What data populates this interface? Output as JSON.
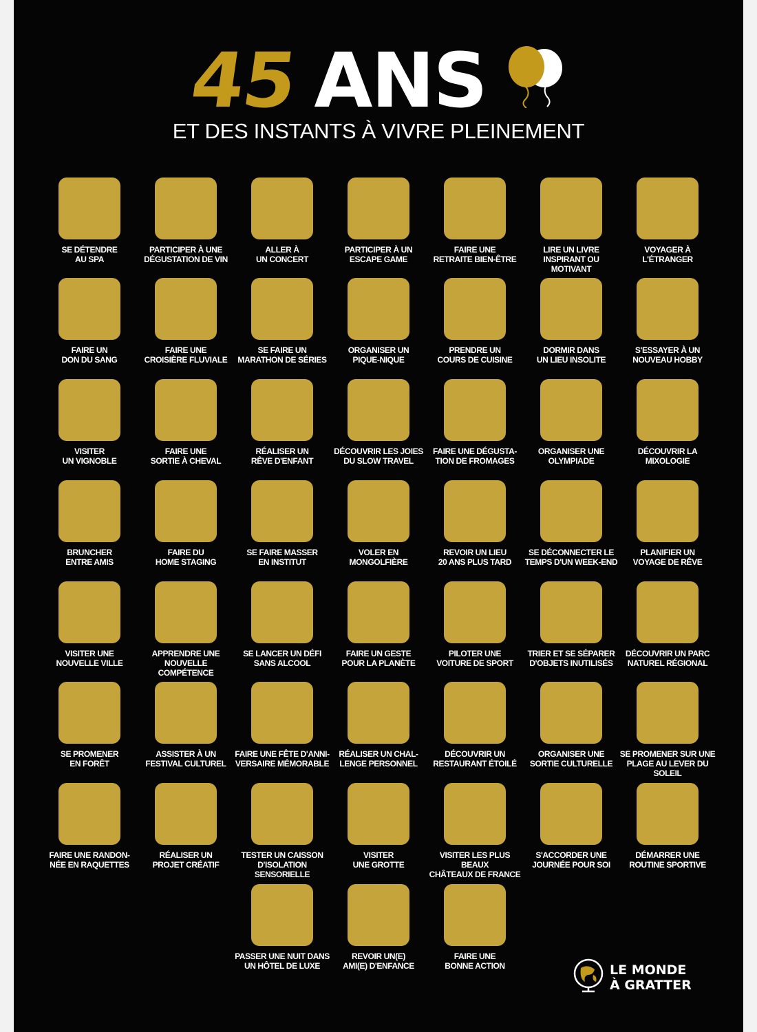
{
  "header": {
    "title_number": "45",
    "title_word": "ANS",
    "subtitle": "ET DES INSTANTS À VIVRE PLEINEMENT"
  },
  "colors": {
    "background": "#050505",
    "gold": "#c6a43c",
    "title_gold": "#c49a1d",
    "text": "#ffffff"
  },
  "items": [
    "SE DÉTENDRE\nAU SPA",
    "PARTICIPER À UNE\nDÉGUSTATION DE VIN",
    "ALLER À\nUN CONCERT",
    "PARTICIPER À UN\nESCAPE GAME",
    "FAIRE UNE\nRETRAITE BIEN-ÊTRE",
    "LIRE UN LIVRE\nINSPIRANT OU MOTIVANT",
    "VOYAGER À\nL'ÉTRANGER",
    "FAIRE UN\nDON DU SANG",
    "FAIRE UNE\nCROISIÈRE FLUVIALE",
    "SE FAIRE UN\nMARATHON DE SÉRIES",
    "ORGANISER UN\nPIQUE-NIQUE",
    "PRENDRE UN\nCOURS DE CUISINE",
    "DORMIR DANS\nUN LIEU INSOLITE",
    "S'ESSAYER À UN\nNOUVEAU HOBBY",
    "VISITER\nUN VIGNOBLE",
    "FAIRE UNE\nSORTIE À CHEVAL",
    "RÉALISER UN\nRÊVE D'ENFANT",
    "DÉCOUVRIR LES JOIES\nDU SLOW TRAVEL",
    "FAIRE UNE DÉGUSTA-\nTION DE FROMAGES",
    "ORGANISER UNE\nOLYMPIADE",
    "DÉCOUVRIR LA\nMIXOLOGIE",
    "BRUNCHER\nENTRE AMIS",
    "FAIRE DU\nHOME STAGING",
    "SE FAIRE MASSER\nEN INSTITUT",
    "VOLER EN\nMONGOLFIÈRE",
    "REVOIR UN LIEU\n20 ANS PLUS TARD",
    "SE DÉCONNECTER LE\nTEMPS D'UN WEEK-END",
    "PLANIFIER UN\nVOYAGE DE RÊVE",
    "VISITER UNE\nNOUVELLE VILLE",
    "APPRENDRE UNE\nNOUVELLE COMPÉTENCE",
    "SE LANCER UN DÉFI\nSANS ALCOOL",
    "FAIRE UN GESTE\nPOUR LA PLANÈTE",
    "PILOTER UNE\nVOITURE DE SPORT",
    "TRIER ET SE SÉPARER\nD'OBJETS INUTILISÉS",
    "DÉCOUVRIR UN PARC\nNATUREL RÉGIONAL",
    "SE PROMENER\nEN FORÊT",
    "ASSISTER À UN\nFESTIVAL CULTUREL",
    "FAIRE UNE FÊTE D'ANNI-\nVERSAIRE MÉMORABLE",
    "RÉALISER UN CHAL-\nLENGE PERSONNEL",
    "DÉCOUVRIR UN\nRESTAURANT ÉTOILÉ",
    "ORGANISER UNE\nSORTIE CULTURELLE",
    "SE PROMENER SUR UNE\nPLAGE AU LEVER DU SOLEIL",
    "FAIRE UNE RANDON-\nNÉE EN RAQUETTES",
    "RÉALISER UN\nPROJET CRÉATIF",
    "TESTER UN CAISSON\nD'ISOLATION SENSORIELLE",
    "VISITER\nUNE GROTTE",
    "VISITER LES PLUS BEAUX\nCHÂTEAUX DE FRANCE",
    "S'ACCORDER UNE\nJOURNÉE POUR SOI",
    "DÉMARRER UNE\nROUTINE SPORTIVE",
    "PASSER UNE NUIT DANS\nUN HÔTEL DE LUXE",
    "REVOIR UN(E)\nAMI(E) D'ENFANCE",
    "FAIRE UNE\nBONNE ACTION"
  ],
  "brand": {
    "name": "LE MONDE\nÀ GRATTER",
    "icon": "globe-icon"
  }
}
